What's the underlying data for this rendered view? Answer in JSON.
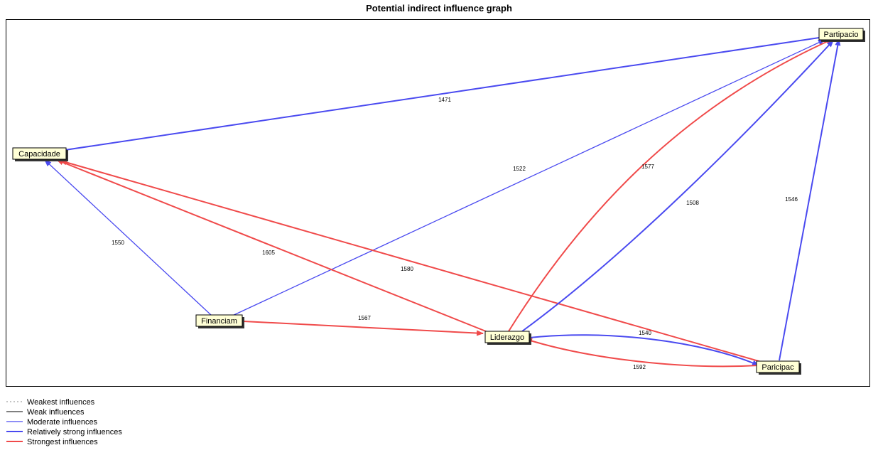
{
  "title": "Potential indirect influence graph",
  "colors": {
    "moderate": "#4a4af0",
    "relatively_strong": "#4a4af0",
    "strongest": "#f04a4a",
    "weak": "#000000",
    "weakest": "#888888",
    "node_fill": "#ffffd6"
  },
  "nodes": [
    {
      "id": "partipacio",
      "label": "Partipacio"
    },
    {
      "id": "capacidade",
      "label": "Capacidade"
    },
    {
      "id": "financiam",
      "label": "Financiam"
    },
    {
      "id": "liderazgo",
      "label": "Liderazgo"
    },
    {
      "id": "paricipac",
      "label": "Paricipac"
    }
  ],
  "edges": [
    {
      "from": "partipacio",
      "to": "capacidade",
      "label": "1471",
      "strength": "relatively_strong"
    },
    {
      "from": "financiam",
      "to": "capacidade",
      "label": "1550",
      "strength": "moderate"
    },
    {
      "from": "financiam",
      "to": "partipacio",
      "label": "1522",
      "strength": "moderate"
    },
    {
      "from": "financiam",
      "to": "liderazgo",
      "label": "1567",
      "strength": "strongest"
    },
    {
      "from": "liderazgo",
      "to": "capacidade",
      "label": "1605",
      "strength": "strongest"
    },
    {
      "from": "paricipac",
      "to": "capacidade",
      "label": "1580",
      "strength": "strongest"
    },
    {
      "from": "liderazgo",
      "to": "partipacio",
      "label": "1577",
      "strength": "strongest"
    },
    {
      "from": "liderazgo",
      "to": "partipacio",
      "label": "1508",
      "strength": "relatively_strong"
    },
    {
      "from": "paricipac",
      "to": "partipacio",
      "label": "1546",
      "strength": "relatively_strong"
    },
    {
      "from": "liderazgo",
      "to": "paricipac",
      "label": "1540",
      "strength": "relatively_strong"
    },
    {
      "from": "paricipac",
      "to": "liderazgo",
      "label": "1592",
      "strength": "strongest"
    }
  ],
  "legend": [
    {
      "label": "Weakest influences",
      "strength": "weakest"
    },
    {
      "label": "Weak influences",
      "strength": "weak"
    },
    {
      "label": "Moderate influences",
      "strength": "moderate"
    },
    {
      "label": "Relatively strong influences",
      "strength": "relatively_strong"
    },
    {
      "label": "Strongest influences",
      "strength": "strongest"
    }
  ]
}
